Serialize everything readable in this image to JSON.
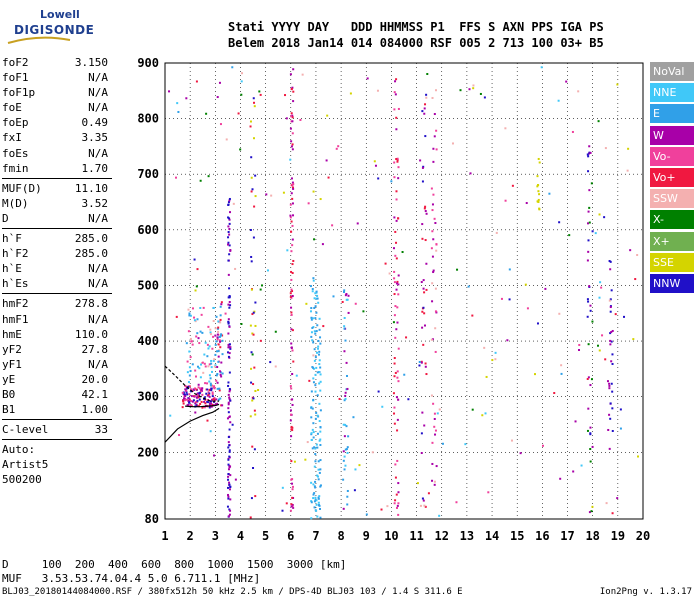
{
  "logo": {
    "line1": "Lowell",
    "line2": "DIGISONDE"
  },
  "header": {
    "line1": "Stati YYYY DAY   DDD HHMMSS P1  FFS S AXN PPS IGA PS",
    "line2": "Belem 2018 Jan14 014 084000 RSF 005 2 713 100 03+ B5"
  },
  "params": {
    "group1": [
      {
        "label": "foF2",
        "value": "3.150"
      },
      {
        "label": "foF1",
        "value": "N/A"
      },
      {
        "label": "foF1p",
        "value": "N/A"
      },
      {
        "label": "foE",
        "value": "N/A"
      },
      {
        "label": "foEp",
        "value": "0.49"
      },
      {
        "label": "fxI",
        "value": "3.35"
      },
      {
        "label": "foEs",
        "value": "N/A"
      },
      {
        "label": "fmin",
        "value": "1.70"
      }
    ],
    "group2": [
      {
        "label": "MUF(D)",
        "value": "11.10"
      },
      {
        "label": "M(D)",
        "value": "3.52"
      },
      {
        "label": "D",
        "value": "N/A"
      }
    ],
    "group3": [
      {
        "label": "h`F",
        "value": "285.0"
      },
      {
        "label": "h`F2",
        "value": "285.0"
      },
      {
        "label": "h`E",
        "value": "N/A"
      },
      {
        "label": "h`Es",
        "value": "N/A"
      }
    ],
    "group4": [
      {
        "label": "hmF2",
        "value": "278.8"
      },
      {
        "label": "hmF1",
        "value": "N/A"
      },
      {
        "label": "hmE",
        "value": "110.0"
      },
      {
        "label": "yF2",
        "value": "27.8"
      },
      {
        "label": "yF1",
        "value": "N/A"
      },
      {
        "label": "yE",
        "value": "20.0"
      },
      {
        "label": "B0",
        "value": "42.1"
      },
      {
        "label": "B1",
        "value": "1.00"
      }
    ],
    "group5": [
      {
        "label": "C-level",
        "value": "33"
      }
    ],
    "auto": [
      "Auto:",
      "Artist5",
      "500200"
    ]
  },
  "legend": [
    {
      "name": "NoVal",
      "color": "#a0a0a0"
    },
    {
      "name": "NNE",
      "color": "#40c8f8"
    },
    {
      "name": "E",
      "color": "#30a0e8"
    },
    {
      "name": "W",
      "color": "#a800a8"
    },
    {
      "name": "Vo-",
      "color": "#f0409c"
    },
    {
      "name": "Vo+",
      "color": "#f01840"
    },
    {
      "name": "SSW",
      "color": "#f4b0b0"
    },
    {
      "name": "X-",
      "color": "#008000"
    },
    {
      "name": "X+",
      "color": "#70b050"
    },
    {
      "name": "SSE",
      "color": "#d4d400"
    },
    {
      "name": "NNW",
      "color": "#2010c8"
    }
  ],
  "muf_table": {
    "d_label": "D",
    "d_values": [
      "100",
      "200",
      "400",
      "600",
      "800",
      "1000",
      "1500",
      "3000"
    ],
    "d_unit": "[km]",
    "muf_label": "MUF",
    "muf_values": [
      "3.5",
      "3.5",
      "3.7",
      "4.0",
      "4.4",
      "5.0",
      "6.7",
      "11.1"
    ],
    "muf_unit": "[MHz]"
  },
  "footer": {
    "left": "BLJ03_20180144084000.RSF / 380fx512h 50 kHz 2.5 km / DPS-4D BLJ03 103 / 1.4 S 311.6 E",
    "right": "Ion2Png v. 1.3.17"
  },
  "chart_data": {
    "type": "scatter",
    "x_ticks": [
      1,
      2,
      3,
      4,
      5,
      6,
      7,
      8,
      9,
      10,
      11,
      12,
      13,
      14,
      15,
      16,
      17,
      18,
      19,
      20
    ],
    "y_ticks": [
      80,
      200,
      300,
      400,
      500,
      600,
      700,
      800,
      900
    ],
    "xlim": [
      1,
      20
    ],
    "ylim": [
      80,
      900
    ],
    "grid": true,
    "legend_position": "right",
    "profile_curve": {
      "x": [
        1.0,
        1.5,
        2.0,
        2.5,
        2.9,
        3.15
      ],
      "y": [
        218,
        242,
        256,
        266,
        272,
        279
      ]
    },
    "trace_lower": {
      "x": [
        1.0,
        1.4,
        1.8,
        2.2,
        2.5,
        2.8,
        3.15
      ],
      "y": [
        355,
        338,
        320,
        305,
        298,
        292,
        292
      ]
    },
    "trace_upper": {
      "x": [
        1.8,
        2.1,
        2.4,
        2.7,
        3.0,
        3.15
      ],
      "y": [
        283,
        282,
        282,
        283,
        284,
        286
      ]
    },
    "dot_clusters": [
      {
        "xmin": 1.7,
        "xmax": 3.0,
        "ymin": 280,
        "ymax": 320,
        "count": 140,
        "colors": [
          "#f01840",
          "#a800a8",
          "#f0409c",
          "#2010c8"
        ]
      },
      {
        "xmin": 1.8,
        "xmax": 3.2,
        "ymin": 320,
        "ymax": 460,
        "count": 90,
        "colors": [
          "#40c8f8",
          "#30a0e8",
          "#f4b0b0",
          "#f0409c"
        ]
      },
      {
        "xmin": 3.5,
        "xmax": 3.6,
        "ymin": 80,
        "ymax": 660,
        "count": 110,
        "colors": [
          "#2010c8",
          "#a800a8"
        ]
      },
      {
        "xmin": 3.0,
        "xmax": 3.3,
        "ymin": 280,
        "ymax": 480,
        "count": 45,
        "colors": [
          "#a800a8",
          "#f01840",
          "#30a0e8"
        ]
      },
      {
        "xmin": 6.0,
        "xmax": 6.1,
        "ymin": 80,
        "ymax": 900,
        "count": 90,
        "colors": [
          "#a800a8",
          "#f0409c",
          "#f01840"
        ]
      },
      {
        "xmin": 6.8,
        "xmax": 7.2,
        "ymin": 80,
        "ymax": 520,
        "count": 140,
        "colors": [
          "#40c8f8",
          "#30a0e8"
        ]
      },
      {
        "xmin": 8.1,
        "xmax": 8.3,
        "ymin": 80,
        "ymax": 500,
        "count": 40,
        "colors": [
          "#40c8f8",
          "#30a0e8",
          "#a800a8"
        ]
      },
      {
        "xmin": 10.1,
        "xmax": 10.3,
        "ymin": 80,
        "ymax": 900,
        "count": 70,
        "colors": [
          "#a800a8",
          "#f01840",
          "#f0409c"
        ]
      },
      {
        "xmin": 11.2,
        "xmax": 11.4,
        "ymin": 80,
        "ymax": 900,
        "count": 40,
        "colors": [
          "#a800a8",
          "#2010c8",
          "#f01840"
        ]
      },
      {
        "xmin": 11.6,
        "xmax": 11.8,
        "ymin": 80,
        "ymax": 900,
        "count": 45,
        "colors": [
          "#f0409c",
          "#f4b0b0",
          "#a800a8"
        ]
      },
      {
        "xmin": 4.4,
        "xmax": 4.6,
        "ymin": 80,
        "ymax": 840,
        "count": 45,
        "colors": [
          "#2010c8",
          "#f01840",
          "#d4d400"
        ]
      },
      {
        "xmin": 17.8,
        "xmax": 18.0,
        "ymin": 180,
        "ymax": 760,
        "count": 35,
        "colors": [
          "#a800a8",
          "#2010c8",
          "#008000"
        ]
      },
      {
        "xmin": 18.6,
        "xmax": 18.8,
        "ymin": 200,
        "ymax": 560,
        "count": 30,
        "colors": [
          "#2010c8",
          "#a800a8"
        ]
      },
      {
        "xmin": 15.8,
        "xmax": 15.9,
        "ymin": 630,
        "ymax": 740,
        "count": 14,
        "colors": [
          "#d4d400"
        ]
      },
      {
        "xmin": 1.0,
        "xmax": 20.0,
        "ymin": 80,
        "ymax": 900,
        "count": 220,
        "colors": [
          "#40c8f8",
          "#a800a8",
          "#f01840",
          "#2010c8",
          "#30a0e8",
          "#f0409c",
          "#008000",
          "#d4d400",
          "#f4b0b0"
        ]
      }
    ]
  }
}
